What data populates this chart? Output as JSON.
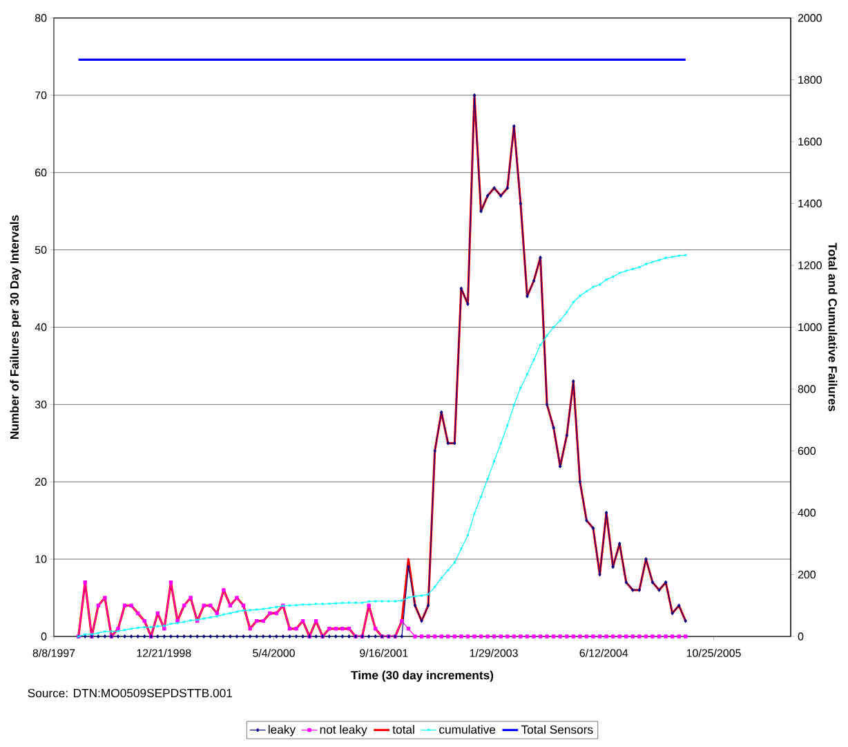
{
  "chart_data": {
    "type": "line",
    "xlabel": "Time (30 day increments)",
    "ylabel": "Number of Failures per 30 Day Intervals",
    "y2label": "Total and Cumulative Failures",
    "annotations": [
      "Source: DTN:MO0509SEPDSTTB.001"
    ],
    "x": [
      "1997-11-28",
      "1997-12-28",
      "1998-01-27",
      "1998-02-26",
      "1998-03-28",
      "1998-04-27",
      "1998-05-27",
      "1998-06-26",
      "1998-07-26",
      "1998-08-25",
      "1998-09-24",
      "1998-10-24",
      "1998-11-23",
      "1998-12-23",
      "1999-01-22",
      "1999-02-21",
      "1999-03-23",
      "1999-04-22",
      "1999-05-22",
      "1999-06-21",
      "1999-07-21",
      "1999-08-20",
      "1999-09-19",
      "1999-10-19",
      "1999-11-18",
      "1999-12-18",
      "2000-01-17",
      "2000-02-16",
      "2000-03-17",
      "2000-04-16",
      "2000-05-16",
      "2000-06-15",
      "2000-07-15",
      "2000-08-14",
      "2000-09-13",
      "2000-10-13",
      "2000-11-12",
      "2000-12-12",
      "2001-01-11",
      "2001-02-10",
      "2001-03-12",
      "2001-04-11",
      "2001-05-11",
      "2001-06-10",
      "2001-07-10",
      "2001-08-09",
      "2001-09-08",
      "2001-10-08",
      "2001-11-07",
      "2001-12-07",
      "2002-01-06",
      "2002-02-05",
      "2002-03-07",
      "2002-04-06",
      "2002-05-06",
      "2002-06-05",
      "2002-07-05",
      "2002-08-04",
      "2002-09-03",
      "2002-10-03",
      "2002-11-02",
      "2002-12-02",
      "2003-01-01",
      "2003-01-31",
      "2003-03-02",
      "2003-04-01",
      "2003-05-01",
      "2003-05-31",
      "2003-06-30",
      "2003-07-30",
      "2003-08-29",
      "2003-09-28",
      "2003-10-28",
      "2003-11-27",
      "2003-12-27",
      "2004-01-26",
      "2004-02-25",
      "2004-03-26",
      "2004-04-25",
      "2004-05-25",
      "2004-06-24",
      "2004-07-24",
      "2004-08-23",
      "2004-09-22",
      "2004-10-22",
      "2004-11-21",
      "2004-12-21",
      "2005-01-20",
      "2005-02-19",
      "2005-03-21",
      "2005-04-20",
      "2005-05-20",
      "2005-06-19"
    ],
    "series": [
      {
        "name": "leaky",
        "color": "#000080",
        "marker": "diamond",
        "values": [
          0,
          0,
          0,
          0,
          0,
          0,
          0,
          0,
          0,
          0,
          0,
          0,
          0,
          0,
          0,
          0,
          0,
          0,
          0,
          0,
          0,
          0,
          0,
          0,
          0,
          0,
          0,
          0,
          0,
          0,
          0,
          0,
          0,
          0,
          0,
          0,
          0,
          0,
          0,
          0,
          0,
          0,
          0,
          0,
          0,
          0,
          0,
          0,
          0,
          0,
          9,
          4,
          2,
          4,
          24,
          29,
          25,
          25,
          45,
          43,
          70,
          55,
          57,
          58,
          57,
          58,
          66,
          56,
          44,
          46,
          49,
          30,
          27,
          22,
          26,
          33,
          20,
          15,
          14,
          8,
          16,
          9,
          12,
          7,
          6,
          6,
          10,
          7,
          6,
          7,
          3,
          4,
          2
        ]
      },
      {
        "name": "not leaky",
        "color": "#ff00ff",
        "marker": "square",
        "values": [
          0,
          7,
          0,
          4,
          5,
          0,
          1,
          4,
          4,
          3,
          2,
          0,
          3,
          1,
          7,
          2,
          4,
          5,
          2,
          4,
          4,
          3,
          6,
          4,
          5,
          4,
          1,
          2,
          2,
          3,
          3,
          4,
          1,
          1,
          2,
          0,
          2,
          0,
          1,
          1,
          1,
          1,
          0,
          0,
          4,
          1,
          0,
          0,
          0,
          2,
          1,
          0,
          0,
          0,
          0,
          0,
          0,
          0,
          0,
          0,
          0,
          0,
          0,
          0,
          0,
          0,
          0,
          0,
          0,
          0,
          0,
          0,
          0,
          0,
          0,
          0,
          0,
          0,
          0,
          0,
          0,
          0,
          0,
          0,
          0,
          0,
          0,
          0,
          0,
          0,
          0,
          0,
          0
        ]
      },
      {
        "name": "total",
        "color": "#ff0000",
        "marker": "none",
        "values": [
          0,
          7,
          0,
          4,
          5,
          0,
          1,
          4,
          4,
          3,
          2,
          0,
          3,
          1,
          7,
          2,
          4,
          5,
          2,
          4,
          4,
          3,
          6,
          4,
          5,
          4,
          1,
          2,
          2,
          3,
          3,
          4,
          1,
          1,
          2,
          0,
          2,
          0,
          1,
          1,
          1,
          1,
          0,
          0,
          4,
          1,
          0,
          0,
          0,
          2,
          10,
          4,
          2,
          4,
          24,
          29,
          25,
          25,
          45,
          43,
          70,
          55,
          57,
          58,
          57,
          58,
          66,
          56,
          44,
          46,
          49,
          30,
          27,
          22,
          26,
          33,
          20,
          15,
          14,
          8,
          16,
          9,
          12,
          7,
          6,
          6,
          10,
          7,
          6,
          7,
          3,
          4,
          2
        ]
      },
      {
        "name": "cumulative",
        "color": "#00ffff",
        "marker": "cross",
        "axis": "y2",
        "values": [
          0,
          7,
          7,
          11,
          16,
          16,
          17,
          21,
          25,
          28,
          30,
          30,
          33,
          34,
          41,
          43,
          47,
          52,
          54,
          58,
          62,
          65,
          71,
          75,
          80,
          84,
          85,
          87,
          89,
          92,
          95,
          99,
          100,
          101,
          103,
          103,
          105,
          105,
          106,
          107,
          108,
          109,
          109,
          109,
          113,
          114,
          114,
          114,
          114,
          116,
          126,
          130,
          132,
          136,
          160,
          189,
          214,
          239,
          284,
          327,
          397,
          452,
          509,
          567,
          624,
          682,
          748,
          804,
          848,
          894,
          943,
          973,
          1000,
          1022,
          1048,
          1081,
          1101,
          1116,
          1130,
          1138,
          1154,
          1163,
          1175,
          1182,
          1188,
          1194,
          1204,
          1211,
          1217,
          1224,
          1227,
          1231,
          1233
        ]
      },
      {
        "name": "Total Sensors",
        "color": "#0000ff",
        "marker": "none",
        "axis": "y2",
        "x": [
          "1997-11-28",
          "2005-06-19"
        ],
        "values": [
          1865,
          1865
        ]
      }
    ],
    "xlim": [
      "1997-08-08",
      "2006-10-10"
    ],
    "xticks": [
      {
        "value": "1997-08-08",
        "label": "8/8/1997"
      },
      {
        "value": "1998-12-21",
        "label": "12/21/1998"
      },
      {
        "value": "2000-05-04",
        "label": "5/4/2000"
      },
      {
        "value": "2001-09-16",
        "label": "9/16/2001"
      },
      {
        "value": "2003-01-29",
        "label": "1/29/2003"
      },
      {
        "value": "2004-06-12",
        "label": "6/12/2004"
      },
      {
        "value": "2005-10-25",
        "label": "10/25/2005"
      }
    ],
    "ylim": [
      0,
      80
    ],
    "yticks": [
      0,
      10,
      20,
      30,
      40,
      50,
      60,
      70,
      80
    ],
    "y2lim": [
      0,
      2000
    ],
    "y2ticks": [
      0,
      200,
      400,
      600,
      800,
      1000,
      1200,
      1400,
      1600,
      1800,
      2000
    ],
    "grid": "y",
    "legend": "bottom"
  }
}
